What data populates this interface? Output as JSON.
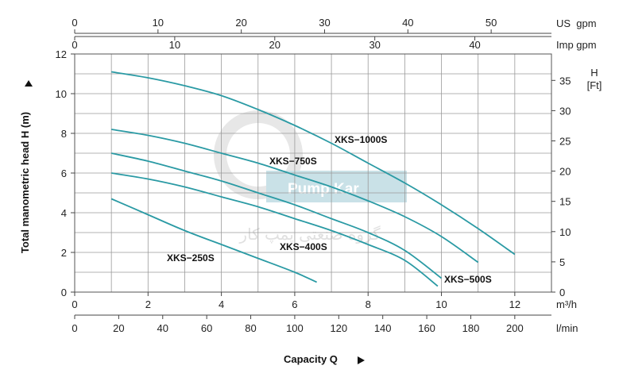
{
  "chart_data": {
    "type": "line",
    "xlabel": "Capacity Q",
    "ylabel": "Total manometric head H (m)",
    "y2label": [
      "H",
      "[Ft]"
    ],
    "units": {
      "m3h": "m³/h",
      "lmin": "l/min",
      "usgpm": "US  gpm",
      "impgpm": "Imp gpm"
    },
    "xlim_m3h": [
      0,
      13
    ],
    "ylim_m": [
      0,
      12
    ],
    "grid": true,
    "axes": {
      "m3h_ticks": [
        0,
        2,
        4,
        6,
        8,
        10,
        12
      ],
      "lmin_ticks": [
        0,
        20,
        40,
        60,
        80,
        100,
        120,
        140,
        160,
        180,
        200
      ],
      "usgpm_ticks": [
        0,
        10,
        20,
        30,
        40,
        50
      ],
      "impgpm_ticks": [
        0,
        10,
        20,
        30,
        40
      ],
      "head_m_ticks": [
        0,
        2,
        4,
        6,
        8,
        10,
        12
      ],
      "head_ft_ticks": [
        0,
        5,
        10,
        15,
        20,
        25,
        30,
        35
      ]
    },
    "series": [
      {
        "name": "XKS−1000S",
        "x": [
          1,
          2,
          3,
          4,
          5,
          6,
          7,
          8,
          9,
          10,
          11,
          12
        ],
        "y": [
          11.1,
          10.8,
          10.4,
          9.9,
          9.2,
          8.4,
          7.5,
          6.5,
          5.5,
          4.4,
          3.2,
          1.9
        ]
      },
      {
        "name": "XKS−750S",
        "x": [
          1,
          2,
          3,
          4,
          5,
          6,
          7,
          8,
          9,
          10,
          11
        ],
        "y": [
          8.2,
          7.9,
          7.5,
          7.0,
          6.5,
          5.9,
          5.3,
          4.6,
          3.8,
          2.8,
          1.5
        ]
      },
      {
        "name": "XKS−500S",
        "x": [
          1,
          2,
          3,
          4,
          5,
          6,
          7,
          8,
          9,
          10
        ],
        "y": [
          7.0,
          6.6,
          6.1,
          5.6,
          5.0,
          4.4,
          3.7,
          3.0,
          2.1,
          0.7
        ]
      },
      {
        "name": "XKS−400S",
        "x": [
          1,
          2,
          3,
          4,
          5,
          6,
          7,
          8,
          9,
          9.9
        ],
        "y": [
          6.0,
          5.7,
          5.3,
          4.8,
          4.3,
          3.7,
          3.1,
          2.4,
          1.6,
          0.3
        ]
      },
      {
        "name": "XKS−250S",
        "x": [
          1,
          2,
          3,
          4,
          5,
          6,
          6.6
        ],
        "y": [
          4.7,
          3.9,
          3.1,
          2.4,
          1.7,
          1.0,
          0.5
        ]
      }
    ]
  },
  "watermark": {
    "latin": "Pump  Kar",
    "persian": "گروه صنعتی پمپ کار"
  },
  "colors": {
    "curve": "#2a9aa4",
    "grid": "#9a9a9a",
    "watermark": "#9ec9d4"
  }
}
